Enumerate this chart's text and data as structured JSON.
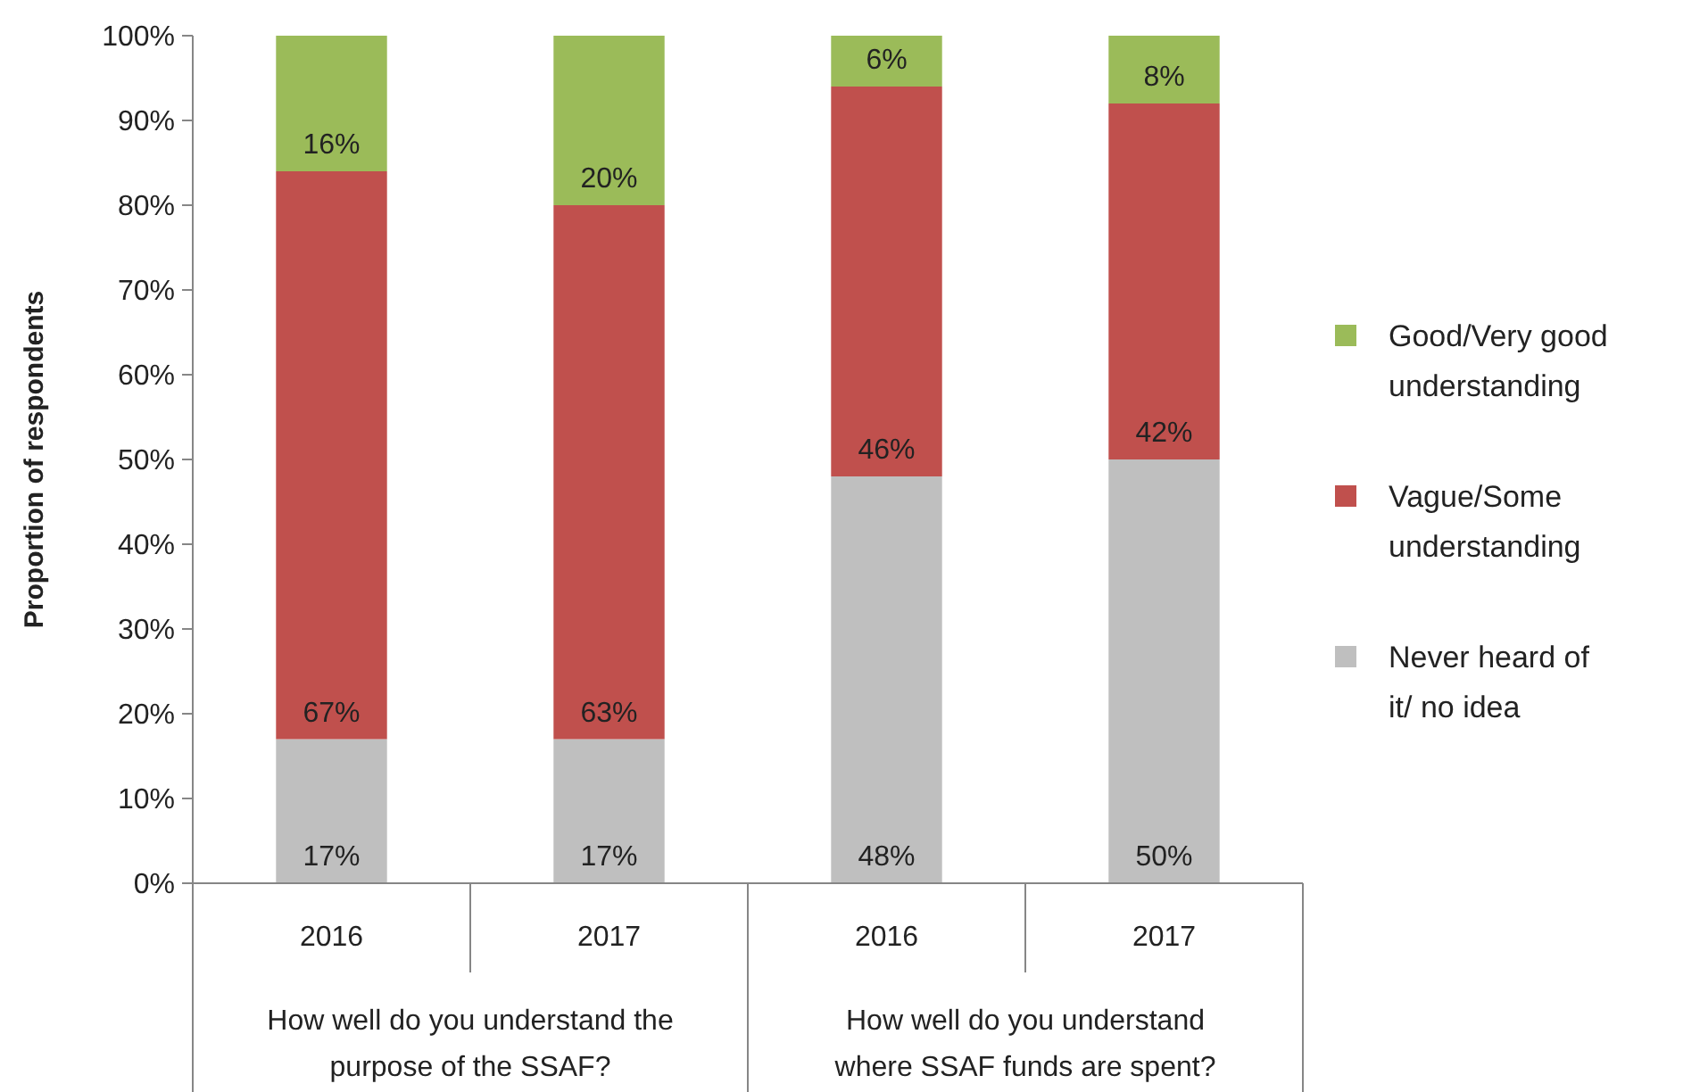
{
  "chart_data": {
    "type": "bar",
    "stacked": true,
    "ylabel": "Proportion of respondents",
    "categories": [
      "2016",
      "2017",
      "2016",
      "2017"
    ],
    "annotations": [
      "How well do you understand the purpose of the SSAF?",
      "How well do you understand where SSAF funds are spent?"
    ],
    "series": [
      {
        "name": "Never heard of it/ no idea",
        "color": "#bfbfbf",
        "values": [
          17,
          17,
          48,
          50
        ],
        "value_labels": [
          "17%",
          "17%",
          "48%",
          "50%"
        ]
      },
      {
        "name": "Vague/Some understanding",
        "color": "#c0504d",
        "values": [
          67,
          63,
          46,
          42
        ],
        "value_labels": [
          "67%",
          "63%",
          "46%",
          "42%"
        ]
      },
      {
        "name": "Good/Very good understanding",
        "color": "#9bbb59",
        "values": [
          16,
          20,
          6,
          8
        ],
        "value_labels": [
          "16%",
          "20%",
          "6%",
          "8%"
        ]
      }
    ],
    "ylim": [
      0,
      100
    ],
    "yticks": [
      {
        "value": 0,
        "label": "0%"
      },
      {
        "value": 10,
        "label": "10%"
      },
      {
        "value": 20,
        "label": "20%"
      },
      {
        "value": 30,
        "label": "30%"
      },
      {
        "value": 40,
        "label": "40%"
      },
      {
        "value": 50,
        "label": "50%"
      },
      {
        "value": 60,
        "label": "60%"
      },
      {
        "value": 70,
        "label": "70%"
      },
      {
        "value": 80,
        "label": "80%"
      },
      {
        "value": 90,
        "label": "90%"
      },
      {
        "value": 100,
        "label": "100%"
      }
    ],
    "grid": false,
    "legend": "right"
  }
}
